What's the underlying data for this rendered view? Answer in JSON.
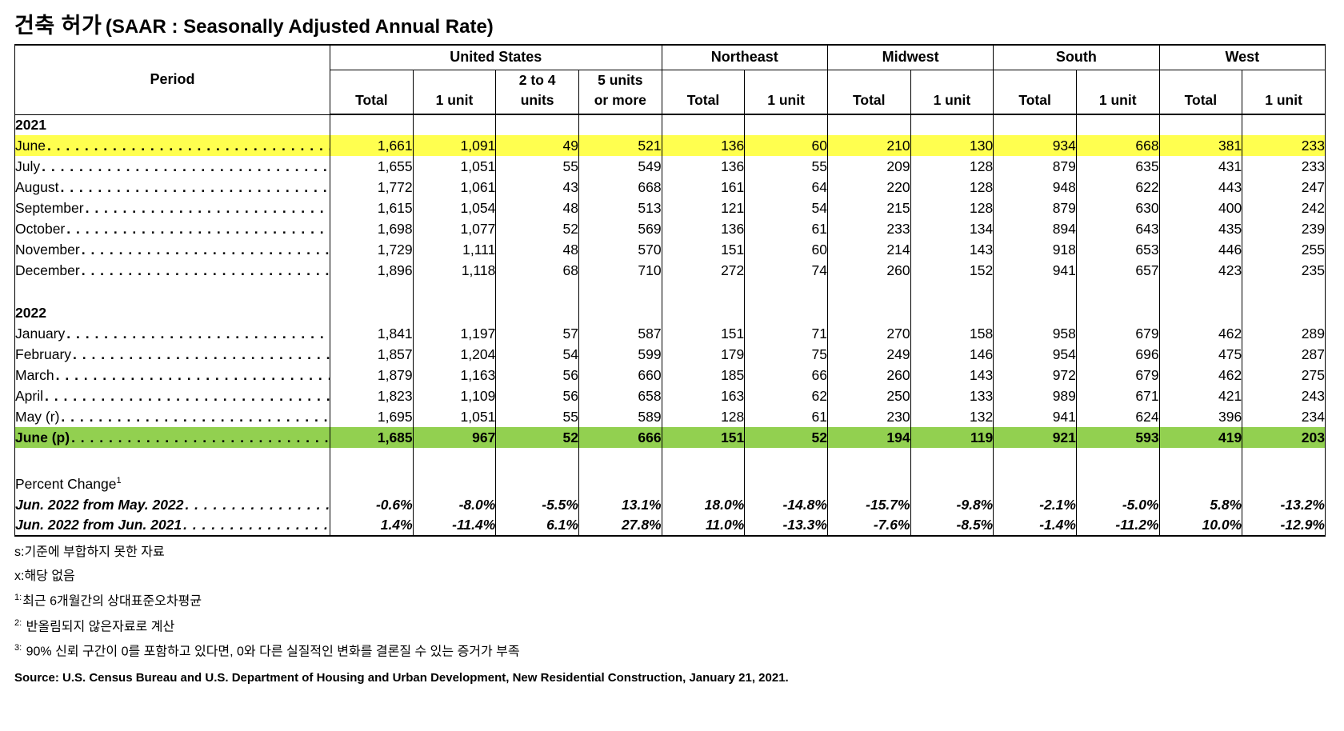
{
  "title": {
    "korean": "건축 허가",
    "english": "(SAAR : Seasonally Adjusted Annual Rate)"
  },
  "colors": {
    "highlight_yellow": "#FFFF4F",
    "highlight_green": "#92D050",
    "border": "#000000"
  },
  "table": {
    "period_header": "Period",
    "region_groups": [
      {
        "label": "United States",
        "columns": [
          "Total",
          "1 unit",
          "2 to 4\nunits",
          "5 units\nor more"
        ]
      },
      {
        "label": "Northeast",
        "columns": [
          "Total",
          "1 unit"
        ]
      },
      {
        "label": "Midwest",
        "columns": [
          "Total",
          "1 unit"
        ]
      },
      {
        "label": "South",
        "columns": [
          "Total",
          "1 unit"
        ]
      },
      {
        "label": "West",
        "columns": [
          "Total",
          "1 unit"
        ]
      }
    ],
    "rows": [
      {
        "type": "year",
        "label": "2021"
      },
      {
        "type": "month",
        "label": "June",
        "highlight": "yellow",
        "values": [
          "1,661",
          "1,091",
          "49",
          "521",
          "136",
          "60",
          "210",
          "130",
          "934",
          "668",
          "381",
          "233"
        ]
      },
      {
        "type": "month",
        "label": "July",
        "values": [
          "1,655",
          "1,051",
          "55",
          "549",
          "136",
          "55",
          "209",
          "128",
          "879",
          "635",
          "431",
          "233"
        ]
      },
      {
        "type": "month",
        "label": "August",
        "values": [
          "1,772",
          "1,061",
          "43",
          "668",
          "161",
          "64",
          "220",
          "128",
          "948",
          "622",
          "443",
          "247"
        ]
      },
      {
        "type": "month",
        "label": "September",
        "values": [
          "1,615",
          "1,054",
          "48",
          "513",
          "121",
          "54",
          "215",
          "128",
          "879",
          "630",
          "400",
          "242"
        ]
      },
      {
        "type": "month",
        "label": "October",
        "values": [
          "1,698",
          "1,077",
          "52",
          "569",
          "136",
          "61",
          "233",
          "134",
          "894",
          "643",
          "435",
          "239"
        ]
      },
      {
        "type": "month",
        "label": "November",
        "values": [
          "1,729",
          "1,111",
          "48",
          "570",
          "151",
          "60",
          "214",
          "143",
          "918",
          "653",
          "446",
          "255"
        ]
      },
      {
        "type": "month",
        "label": "December",
        "values": [
          "1,896",
          "1,118",
          "68",
          "710",
          "272",
          "74",
          "260",
          "152",
          "941",
          "657",
          "423",
          "235"
        ]
      },
      {
        "type": "spacer"
      },
      {
        "type": "year",
        "label": "2022"
      },
      {
        "type": "month",
        "label": "January",
        "values": [
          "1,841",
          "1,197",
          "57",
          "587",
          "151",
          "71",
          "270",
          "158",
          "958",
          "679",
          "462",
          "289"
        ]
      },
      {
        "type": "month",
        "label": "February",
        "values": [
          "1,857",
          "1,204",
          "54",
          "599",
          "179",
          "75",
          "249",
          "146",
          "954",
          "696",
          "475",
          "287"
        ]
      },
      {
        "type": "month",
        "label": "March",
        "values": [
          "1,879",
          "1,163",
          "56",
          "660",
          "185",
          "66",
          "260",
          "143",
          "972",
          "679",
          "462",
          "275"
        ]
      },
      {
        "type": "month",
        "label": "April",
        "values": [
          "1,823",
          "1,109",
          "56",
          "658",
          "163",
          "62",
          "250",
          "133",
          "989",
          "671",
          "421",
          "243"
        ]
      },
      {
        "type": "month",
        "label": "May (r)",
        "values": [
          "1,695",
          "1,051",
          "55",
          "589",
          "128",
          "61",
          "230",
          "132",
          "941",
          "624",
          "396",
          "234"
        ]
      },
      {
        "type": "month",
        "label": "June (p)",
        "highlight": "green",
        "bold": true,
        "values": [
          "1,685",
          "967",
          "52",
          "666",
          "151",
          "52",
          "194",
          "119",
          "921",
          "593",
          "419",
          "203"
        ]
      },
      {
        "type": "spacer2"
      },
      {
        "type": "pclabel",
        "label": "Percent Change",
        "superscript": "1"
      },
      {
        "type": "percent",
        "label": "Jun. 2022 from May. 2022",
        "values": [
          "-0.6%",
          "-8.0%",
          "-5.5%",
          "13.1%",
          "18.0%",
          "-14.8%",
          "-15.7%",
          "-9.8%",
          "-2.1%",
          "-5.0%",
          "5.8%",
          "-13.2%"
        ]
      },
      {
        "type": "percent",
        "label": "Jun. 2022 from Jun. 2021",
        "values": [
          "1.4%",
          "-11.4%",
          "6.1%",
          "27.8%",
          "11.0%",
          "-13.3%",
          "-7.6%",
          "-8.5%",
          "-1.4%",
          "-11.2%",
          "10.0%",
          "-12.9%"
        ]
      }
    ]
  },
  "footnotes": [
    {
      "prefix": "s:",
      "text": "기준에 부합하지 못한 자료"
    },
    {
      "prefix": "x:",
      "text": "해당 없음"
    },
    {
      "sup": "1:",
      "text": "최근 6개월간의 상대표준오차평균"
    },
    {
      "sup": "2:",
      "text": " 반올림되지 않은자료로 계산"
    },
    {
      "sup": "3:",
      "text": " 90% 신뢰 구간이 0를 포함하고 있다면, 0와 다른 실질적인 변화를 결론질 수 있는 증거가 부족"
    }
  ],
  "source": "Source: U.S. Census Bureau and U.S. Department of Housing and Urban Development, New Residential Construction, January 21, 2021."
}
